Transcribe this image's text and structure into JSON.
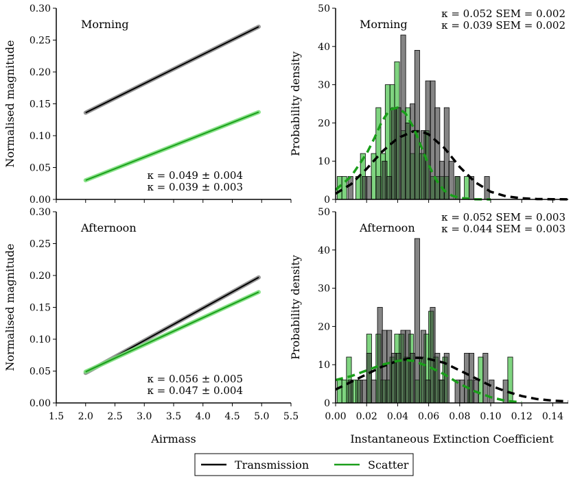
{
  "colors": {
    "transmission": "#000000",
    "scatter": "#1a9e1a",
    "scatter_light": "#7ee07e",
    "trans_light": "#8c8c8c"
  },
  "legend": {
    "items": [
      {
        "label": "Transmission",
        "color": "#000000"
      },
      {
        "label": "Scatter",
        "color": "#1a9e1a"
      }
    ]
  },
  "chart_data": [
    {
      "id": "morning-airmass",
      "type": "line",
      "title": "Morning",
      "xlabel": "",
      "ylabel": "Normalised magnitude",
      "xlim": [
        1.5,
        5.5
      ],
      "ylim": [
        0.0,
        0.3
      ],
      "xticks": [
        1.5,
        2.0,
        2.5,
        3.0,
        3.5,
        4.0,
        4.5,
        5.0,
        5.5
      ],
      "yticks": [
        "0.00",
        "0.05",
        "0.10",
        "0.15",
        "0.20",
        "0.25",
        "0.30"
      ],
      "series": [
        {
          "name": "Transmission",
          "x": [
            2.0,
            4.95
          ],
          "y": [
            0.136,
            0.271
          ]
        },
        {
          "name": "Scatter",
          "x": [
            2.0,
            4.95
          ],
          "y": [
            0.03,
            0.137
          ]
        }
      ],
      "annotations": [
        "κ = 0.049 ± 0.004",
        "κ = 0.039 ± 0.003"
      ]
    },
    {
      "id": "morning-hist",
      "type": "bar",
      "title": "Morning",
      "xlabel": "",
      "ylabel": "Probability density",
      "xlim": [
        0.0,
        0.15
      ],
      "ylim": [
        0,
        50
      ],
      "xticks": [
        "0.00",
        "0.02",
        "0.04",
        "0.06",
        "0.08",
        "0.10",
        "0.12",
        "0.14"
      ],
      "yticks": [
        "0",
        "10",
        "20",
        "30",
        "40",
        "50"
      ],
      "bin_width": 0.0032,
      "series": [
        {
          "name": "Transmission",
          "bins": [
            0.008,
            0.017,
            0.02,
            0.026,
            0.03,
            0.033,
            0.036,
            0.039,
            0.042,
            0.045,
            0.048,
            0.051,
            0.055,
            0.058,
            0.061,
            0.064,
            0.067,
            0.07,
            0.073,
            0.077,
            0.086,
            0.096
          ],
          "values": [
            6,
            6,
            6,
            6,
            10,
            6,
            24,
            24,
            43,
            20,
            25,
            39,
            18,
            31,
            31,
            24,
            10,
            24,
            10,
            6,
            6,
            6
          ]
        },
        {
          "name": "Scatter",
          "bins": [
            0.001,
            0.004,
            0.013,
            0.016,
            0.023,
            0.026,
            0.029,
            0.032,
            0.035,
            0.038,
            0.042,
            0.045,
            0.048,
            0.051,
            0.054,
            0.057,
            0.061,
            0.064,
            0.067,
            0.07,
            0.077,
            0.083
          ],
          "values": [
            6,
            6,
            6,
            12,
            12,
            24,
            12,
            30,
            30,
            36,
            18,
            24,
            12,
            18,
            12,
            18,
            6,
            6,
            6,
            6,
            6,
            6
          ]
        }
      ],
      "fits": [
        {
          "name": "Transmission",
          "x": [
            0.0,
            0.01,
            0.02,
            0.03,
            0.04,
            0.05,
            0.055,
            0.06,
            0.07,
            0.08,
            0.09,
            0.1,
            0.11,
            0.12,
            0.13,
            0.14,
            0.15
          ],
          "y": [
            1.5,
            4,
            8,
            12.5,
            16,
            17.8,
            17.8,
            17,
            13.5,
            8.5,
            4.5,
            2,
            0.8,
            0.3,
            0.1,
            0.05,
            0.02
          ]
        },
        {
          "name": "Scatter",
          "x": [
            0.0,
            0.01,
            0.02,
            0.025,
            0.03,
            0.035,
            0.04,
            0.045,
            0.05,
            0.055,
            0.06,
            0.065,
            0.07,
            0.075,
            0.08,
            0.09,
            0.1
          ],
          "y": [
            2.5,
            6,
            12,
            16,
            20.5,
            23.5,
            24,
            22.5,
            19,
            14,
            9,
            5,
            2.3,
            1,
            0.4,
            0.05,
            0
          ]
        }
      ],
      "annotations": [
        "κ = 0.052 SEM = 0.002",
        "κ = 0.039 SEM = 0.002"
      ]
    },
    {
      "id": "afternoon-airmass",
      "type": "line",
      "title": "Afternoon",
      "xlabel": "Airmass",
      "ylabel": "Normalised magnitude",
      "xlim": [
        1.5,
        5.5
      ],
      "ylim": [
        0.0,
        0.3
      ],
      "xticks": [
        "1.5",
        "2.0",
        "2.5",
        "3.0",
        "3.5",
        "4.0",
        "4.5",
        "5.0",
        "5.5"
      ],
      "yticks": [
        "0.00",
        "0.05",
        "0.10",
        "0.15",
        "0.20",
        "0.25",
        "0.30"
      ],
      "series": [
        {
          "name": "Transmission",
          "x": [
            2.0,
            4.95
          ],
          "y": [
            0.047,
            0.197
          ]
        },
        {
          "name": "Scatter",
          "x": [
            2.0,
            4.95
          ],
          "y": [
            0.049,
            0.174
          ]
        }
      ],
      "annotations": [
        "κ = 0.056 ± 0.005",
        "κ = 0.047 ± 0.004"
      ]
    },
    {
      "id": "afternoon-hist",
      "type": "bar",
      "title": "Afternoon",
      "xlabel": "Instantaneous Extinction Coefficient",
      "ylabel": "Probability density",
      "xlim": [
        0.0,
        0.15
      ],
      "ylim": [
        0,
        50
      ],
      "xticks": [
        "0.00",
        "0.02",
        "0.04",
        "0.06",
        "0.08",
        "0.10",
        "0.12",
        "0.14"
      ],
      "yticks": [
        "0",
        "10",
        "20",
        "30",
        "40",
        "50"
      ],
      "bin_width": 0.0032,
      "series": [
        {
          "name": "Transmission",
          "bins": [
            0.008,
            0.014,
            0.017,
            0.02,
            0.023,
            0.027,
            0.03,
            0.033,
            0.036,
            0.039,
            0.042,
            0.045,
            0.048,
            0.051,
            0.055,
            0.058,
            0.061,
            0.064,
            0.067,
            0.07,
            0.077,
            0.08,
            0.083,
            0.086,
            0.089,
            0.095,
            0.099,
            0.108
          ],
          "values": [
            6,
            6,
            6,
            13,
            6,
            25,
            19,
            19,
            13,
            13,
            19,
            19,
            13,
            43,
            19,
            6,
            25,
            13,
            6,
            13,
            6,
            6,
            13,
            13,
            6,
            13,
            6,
            6
          ]
        },
        {
          "name": "Scatter",
          "bins": [
            0.001,
            0.004,
            0.007,
            0.01,
            0.013,
            0.02,
            0.026,
            0.029,
            0.032,
            0.035,
            0.038,
            0.041,
            0.044,
            0.047,
            0.051,
            0.054,
            0.057,
            0.06,
            0.063,
            0.066,
            0.069,
            0.085,
            0.092,
            0.111
          ],
          "values": [
            6,
            6,
            12,
            6,
            6,
            18,
            18,
            6,
            6,
            12,
            18,
            18,
            12,
            18,
            6,
            12,
            18,
            24,
            12,
            6,
            12,
            6,
            12,
            12
          ]
        }
      ],
      "fits": [
        {
          "name": "Transmission",
          "x": [
            0.0,
            0.01,
            0.02,
            0.03,
            0.04,
            0.05,
            0.055,
            0.06,
            0.07,
            0.08,
            0.09,
            0.1,
            0.11,
            0.12,
            0.13,
            0.14,
            0.15
          ],
          "y": [
            3.5,
            5.5,
            7.5,
            9.5,
            11,
            11.8,
            11.8,
            11.5,
            10.5,
            8.5,
            6.5,
            4.5,
            3,
            1.8,
            1,
            0.6,
            0.4
          ]
        },
        {
          "name": "Scatter",
          "x": [
            0.0,
            0.01,
            0.02,
            0.03,
            0.04,
            0.045,
            0.05,
            0.06,
            0.07,
            0.08,
            0.09,
            0.1,
            0.11,
            0.12
          ],
          "y": [
            6,
            7,
            8.5,
            10,
            11,
            11.2,
            11,
            9.5,
            7.5,
            5,
            3,
            1.5,
            0.5,
            0.2
          ]
        }
      ],
      "annotations": [
        "κ = 0.052 SEM = 0.003",
        "κ = 0.044 SEM = 0.003"
      ]
    }
  ]
}
